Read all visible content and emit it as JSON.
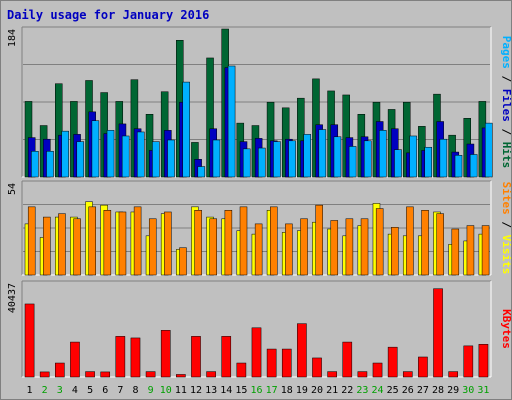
{
  "title": "Daily usage for January 2016",
  "chart_data": {
    "type": "bar",
    "title": "Daily usage for January 2016",
    "categories": [
      "1",
      "2",
      "3",
      "4",
      "5",
      "6",
      "7",
      "8",
      "9",
      "10",
      "11",
      "12",
      "13",
      "14",
      "15",
      "16",
      "17",
      "18",
      "19",
      "20",
      "21",
      "22",
      "23",
      "24",
      "25",
      "26",
      "27",
      "28",
      "29",
      "30",
      "31"
    ],
    "weekend_days": [
      "2",
      "3",
      "9",
      "10",
      "16",
      "17",
      "23",
      "24",
      "30",
      "31"
    ],
    "panels": [
      {
        "name": "hits_panel",
        "max_label": "184",
        "ylim": [
          0,
          184
        ],
        "legend": [
          "Pages",
          "Files",
          "Hits"
        ],
        "legend_separator": " / ",
        "series": [
          {
            "name": "Hits",
            "color": "#006633",
            "values": [
              94,
              64,
              116,
              94,
              120,
              105,
              94,
              121,
              78,
              106,
              170,
              43,
              148,
              184,
              67,
              64,
              93,
              86,
              98,
              122,
              107,
              102,
              78,
              93,
              84,
              93,
              63,
              103,
              52,
              73,
              94
            ]
          },
          {
            "name": "Files",
            "color": "#0000C0",
            "values": [
              49,
              47,
              52,
              53,
              81,
              54,
              66,
              60,
              33,
              58,
              93,
              22,
              60,
              136,
              44,
              48,
              45,
              47,
              45,
              65,
              65,
              49,
              50,
              69,
              60,
              30,
              33,
              69,
              31,
              41,
              61
            ]
          },
          {
            "name": "Pages",
            "color": "#00B0FF",
            "values": [
              32,
              32,
              57,
              44,
              70,
              58,
              51,
              56,
              44,
              46,
              118,
              13,
              46,
              138,
              35,
              36,
              44,
              45,
              53,
              59,
              50,
              38,
              45,
              58,
              34,
              51,
              37,
              47,
              27,
              28,
              67
            ]
          }
        ]
      },
      {
        "name": "visits_panel",
        "max_label": "54",
        "ylim": [
          0,
          54
        ],
        "legend": [
          "Sites",
          "Visits"
        ],
        "legend_separator": " / ",
        "series": [
          {
            "name": "Visits",
            "color": "#FFFF00",
            "values": [
              30,
              22,
              34,
              34,
              43,
              41,
              37,
              37,
              23,
              36,
              15,
              40,
              34,
              33,
              26,
              24,
              38,
              25,
              26,
              31,
              27,
              23,
              29,
              42,
              24,
              23,
              23,
              37,
              18,
              20,
              24
            ]
          },
          {
            "name": "Sites",
            "color": "#FF8000",
            "values": [
              40,
              34,
              36,
              33,
              40,
              38,
              37,
              40,
              33,
              37,
              16,
              38,
              33,
              38,
              40,
              30,
              40,
              30,
              33,
              41,
              32,
              33,
              33,
              39,
              28,
              40,
              38,
              36,
              27,
              29,
              29
            ]
          }
        ]
      },
      {
        "name": "kbytes_panel",
        "max_label": "40437",
        "ylim": [
          0,
          40437
        ],
        "legend": [
          "KBytes"
        ],
        "legend_separator": "",
        "series": [
          {
            "name": "KBytes",
            "color": "#FF0000",
            "values": [
              31420,
              2185,
              6011,
              15028,
              2323,
              2185,
              17485,
              16802,
              2321,
              20077,
              1092,
              17485,
              2323,
              17485,
              6011,
              21167,
              12020,
              12020,
              22947,
              8195,
              2321,
              15028,
              2323,
              6011,
              12837,
              2323,
              8608,
              37975,
              2323,
              13390,
              14071
            ]
          }
        ]
      }
    ]
  }
}
